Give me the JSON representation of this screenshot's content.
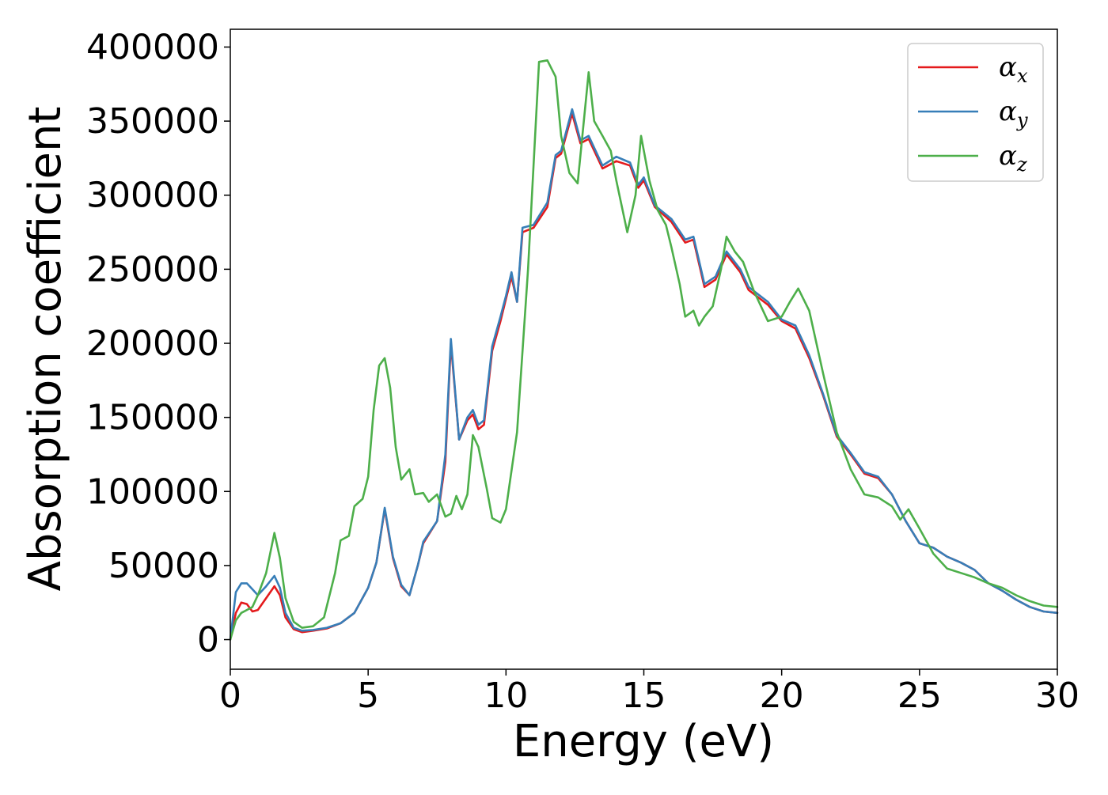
{
  "chart_data": {
    "type": "line",
    "title": "",
    "xlabel": "Energy (eV)",
    "ylabel": "Absorption coefficient",
    "xlim": [
      0,
      30
    ],
    "ylim": [
      -20000,
      412000
    ],
    "xticks": [
      0,
      5,
      10,
      15,
      20,
      25,
      30
    ],
    "xtick_labels": [
      "0",
      "5",
      "10",
      "15",
      "20",
      "25",
      "30"
    ],
    "yticks": [
      0,
      50000,
      100000,
      150000,
      200000,
      250000,
      300000,
      350000,
      400000
    ],
    "ytick_labels": [
      "0",
      "50000",
      "100000",
      "150000",
      "200000",
      "250000",
      "300000",
      "350000",
      "400000"
    ],
    "grid": false,
    "legend_position": "top-right",
    "series": [
      {
        "name": "α_x",
        "symbol": "α",
        "subscript": "x",
        "color": "#e41a1c",
        "points": [
          [
            0,
            0
          ],
          [
            0.2,
            18000
          ],
          [
            0.4,
            25000
          ],
          [
            0.6,
            24000
          ],
          [
            0.8,
            19000
          ],
          [
            1.0,
            20000
          ],
          [
            1.3,
            28000
          ],
          [
            1.6,
            36000
          ],
          [
            1.8,
            30000
          ],
          [
            2.0,
            15000
          ],
          [
            2.3,
            7000
          ],
          [
            2.6,
            5000
          ],
          [
            3.0,
            6000
          ],
          [
            3.5,
            7500
          ],
          [
            4.0,
            11000
          ],
          [
            4.5,
            18000
          ],
          [
            5.0,
            35000
          ],
          [
            5.3,
            52000
          ],
          [
            5.6,
            88000
          ],
          [
            5.9,
            55000
          ],
          [
            6.2,
            36000
          ],
          [
            6.5,
            30000
          ],
          [
            6.8,
            50000
          ],
          [
            7.0,
            65000
          ],
          [
            7.5,
            80000
          ],
          [
            7.8,
            120000
          ],
          [
            8.0,
            200000
          ],
          [
            8.3,
            135000
          ],
          [
            8.6,
            148000
          ],
          [
            8.8,
            152000
          ],
          [
            9.0,
            142000
          ],
          [
            9.2,
            145000
          ],
          [
            9.5,
            195000
          ],
          [
            9.8,
            215000
          ],
          [
            10.0,
            230000
          ],
          [
            10.2,
            245000
          ],
          [
            10.4,
            228000
          ],
          [
            10.6,
            275000
          ],
          [
            11.0,
            278000
          ],
          [
            11.5,
            292000
          ],
          [
            11.8,
            325000
          ],
          [
            12.0,
            328000
          ],
          [
            12.4,
            355000
          ],
          [
            12.7,
            335000
          ],
          [
            13.0,
            338000
          ],
          [
            13.5,
            318000
          ],
          [
            14.0,
            323000
          ],
          [
            14.5,
            320000
          ],
          [
            14.8,
            305000
          ],
          [
            15.0,
            310000
          ],
          [
            15.4,
            292000
          ],
          [
            16.0,
            282000
          ],
          [
            16.5,
            268000
          ],
          [
            16.8,
            270000
          ],
          [
            17.2,
            238000
          ],
          [
            17.6,
            243000
          ],
          [
            18.0,
            260000
          ],
          [
            18.5,
            248000
          ],
          [
            18.8,
            236000
          ],
          [
            19.5,
            226000
          ],
          [
            20.0,
            215000
          ],
          [
            20.5,
            210000
          ],
          [
            21.0,
            190000
          ],
          [
            21.5,
            165000
          ],
          [
            22.0,
            137000
          ],
          [
            22.5,
            125000
          ],
          [
            23.0,
            112000
          ],
          [
            23.5,
            109000
          ],
          [
            24.0,
            98000
          ],
          [
            24.5,
            80000
          ],
          [
            25.0,
            65000
          ],
          [
            25.5,
            62000
          ],
          [
            26.0,
            56000
          ],
          [
            26.5,
            52000
          ],
          [
            27.0,
            47000
          ],
          [
            27.5,
            38000
          ],
          [
            28.0,
            33000
          ],
          [
            28.5,
            27000
          ],
          [
            29.0,
            22000
          ],
          [
            29.5,
            19000
          ],
          [
            30.0,
            18000
          ]
        ]
      },
      {
        "name": "α_y",
        "symbol": "α",
        "subscript": "y",
        "color": "#377eb8",
        "points": [
          [
            0,
            0
          ],
          [
            0.2,
            32000
          ],
          [
            0.4,
            38000
          ],
          [
            0.6,
            38000
          ],
          [
            0.8,
            34000
          ],
          [
            1.0,
            30000
          ],
          [
            1.3,
            36000
          ],
          [
            1.6,
            43000
          ],
          [
            1.8,
            35000
          ],
          [
            2.0,
            18000
          ],
          [
            2.3,
            8000
          ],
          [
            2.6,
            6000
          ],
          [
            3.0,
            6500
          ],
          [
            3.5,
            8000
          ],
          [
            4.0,
            11000
          ],
          [
            4.5,
            18000
          ],
          [
            5.0,
            35000
          ],
          [
            5.3,
            52000
          ],
          [
            5.6,
            89000
          ],
          [
            5.9,
            56000
          ],
          [
            6.2,
            37000
          ],
          [
            6.5,
            30000
          ],
          [
            6.8,
            50000
          ],
          [
            7.0,
            66000
          ],
          [
            7.5,
            80000
          ],
          [
            7.8,
            125000
          ],
          [
            8.0,
            203000
          ],
          [
            8.3,
            135000
          ],
          [
            8.6,
            150000
          ],
          [
            8.8,
            155000
          ],
          [
            9.0,
            145000
          ],
          [
            9.2,
            148000
          ],
          [
            9.5,
            198000
          ],
          [
            9.8,
            218000
          ],
          [
            10.0,
            232000
          ],
          [
            10.2,
            248000
          ],
          [
            10.4,
            228000
          ],
          [
            10.6,
            278000
          ],
          [
            11.0,
            280000
          ],
          [
            11.5,
            295000
          ],
          [
            11.8,
            327000
          ],
          [
            12.0,
            330000
          ],
          [
            12.4,
            358000
          ],
          [
            12.7,
            337000
          ],
          [
            13.0,
            340000
          ],
          [
            13.5,
            320000
          ],
          [
            14.0,
            326000
          ],
          [
            14.5,
            322000
          ],
          [
            14.8,
            307000
          ],
          [
            15.0,
            312000
          ],
          [
            15.4,
            293000
          ],
          [
            16.0,
            284000
          ],
          [
            16.5,
            270000
          ],
          [
            16.8,
            272000
          ],
          [
            17.2,
            240000
          ],
          [
            17.6,
            245000
          ],
          [
            18.0,
            262000
          ],
          [
            18.5,
            250000
          ],
          [
            18.8,
            238000
          ],
          [
            19.5,
            228000
          ],
          [
            20.0,
            216000
          ],
          [
            20.5,
            212000
          ],
          [
            21.0,
            192000
          ],
          [
            21.5,
            166000
          ],
          [
            22.0,
            138000
          ],
          [
            22.5,
            126000
          ],
          [
            23.0,
            113000
          ],
          [
            23.5,
            110000
          ],
          [
            24.0,
            98000
          ],
          [
            24.5,
            80000
          ],
          [
            25.0,
            65000
          ],
          [
            25.5,
            62000
          ],
          [
            26.0,
            56000
          ],
          [
            26.5,
            52000
          ],
          [
            27.0,
            47000
          ],
          [
            27.5,
            38000
          ],
          [
            28.0,
            33000
          ],
          [
            28.5,
            27000
          ],
          [
            29.0,
            22000
          ],
          [
            29.5,
            19000
          ],
          [
            30.0,
            18000
          ]
        ]
      },
      {
        "name": "α_z",
        "symbol": "α",
        "subscript": "z",
        "color": "#4daf4a",
        "points": [
          [
            0,
            0
          ],
          [
            0.2,
            13000
          ],
          [
            0.4,
            18000
          ],
          [
            0.6,
            20000
          ],
          [
            0.8,
            22000
          ],
          [
            1.0,
            30000
          ],
          [
            1.3,
            45000
          ],
          [
            1.6,
            72000
          ],
          [
            1.8,
            55000
          ],
          [
            2.0,
            28000
          ],
          [
            2.3,
            12000
          ],
          [
            2.6,
            8000
          ],
          [
            3.0,
            9000
          ],
          [
            3.4,
            15000
          ],
          [
            3.8,
            45000
          ],
          [
            4.0,
            67000
          ],
          [
            4.3,
            70000
          ],
          [
            4.5,
            90000
          ],
          [
            4.8,
            95000
          ],
          [
            5.0,
            110000
          ],
          [
            5.2,
            155000
          ],
          [
            5.4,
            185000
          ],
          [
            5.6,
            190000
          ],
          [
            5.8,
            170000
          ],
          [
            6.0,
            130000
          ],
          [
            6.2,
            108000
          ],
          [
            6.5,
            115000
          ],
          [
            6.7,
            98000
          ],
          [
            7.0,
            99000
          ],
          [
            7.2,
            93000
          ],
          [
            7.5,
            98000
          ],
          [
            7.8,
            83000
          ],
          [
            8.0,
            85000
          ],
          [
            8.2,
            97000
          ],
          [
            8.4,
            88000
          ],
          [
            8.6,
            98000
          ],
          [
            8.8,
            138000
          ],
          [
            9.0,
            130000
          ],
          [
            9.3,
            102000
          ],
          [
            9.5,
            82000
          ],
          [
            9.8,
            79000
          ],
          [
            10.0,
            88000
          ],
          [
            10.4,
            140000
          ],
          [
            10.8,
            250000
          ],
          [
            11.2,
            390000
          ],
          [
            11.5,
            391000
          ],
          [
            11.8,
            380000
          ],
          [
            12.0,
            340000
          ],
          [
            12.3,
            315000
          ],
          [
            12.6,
            308000
          ],
          [
            13.0,
            383000
          ],
          [
            13.2,
            350000
          ],
          [
            13.5,
            340000
          ],
          [
            13.8,
            330000
          ],
          [
            14.0,
            310000
          ],
          [
            14.4,
            275000
          ],
          [
            14.7,
            300000
          ],
          [
            14.9,
            340000
          ],
          [
            15.2,
            310000
          ],
          [
            15.5,
            290000
          ],
          [
            15.8,
            280000
          ],
          [
            16.0,
            265000
          ],
          [
            16.3,
            240000
          ],
          [
            16.5,
            218000
          ],
          [
            16.8,
            222000
          ],
          [
            17.0,
            212000
          ],
          [
            17.2,
            218000
          ],
          [
            17.5,
            225000
          ],
          [
            17.8,
            250000
          ],
          [
            18.0,
            272000
          ],
          [
            18.3,
            262000
          ],
          [
            18.6,
            255000
          ],
          [
            19.0,
            235000
          ],
          [
            19.5,
            215000
          ],
          [
            20.0,
            218000
          ],
          [
            20.3,
            228000
          ],
          [
            20.6,
            237000
          ],
          [
            21.0,
            222000
          ],
          [
            21.5,
            180000
          ],
          [
            22.0,
            140000
          ],
          [
            22.5,
            115000
          ],
          [
            23.0,
            98000
          ],
          [
            23.5,
            96000
          ],
          [
            24.0,
            90000
          ],
          [
            24.3,
            81000
          ],
          [
            24.6,
            88000
          ],
          [
            25.0,
            75000
          ],
          [
            25.5,
            58000
          ],
          [
            26.0,
            48000
          ],
          [
            26.5,
            45000
          ],
          [
            27.0,
            42000
          ],
          [
            27.5,
            38000
          ],
          [
            28.0,
            35000
          ],
          [
            28.5,
            30000
          ],
          [
            29.0,
            26000
          ],
          [
            29.5,
            23000
          ],
          [
            30.0,
            22000
          ]
        ]
      }
    ]
  }
}
